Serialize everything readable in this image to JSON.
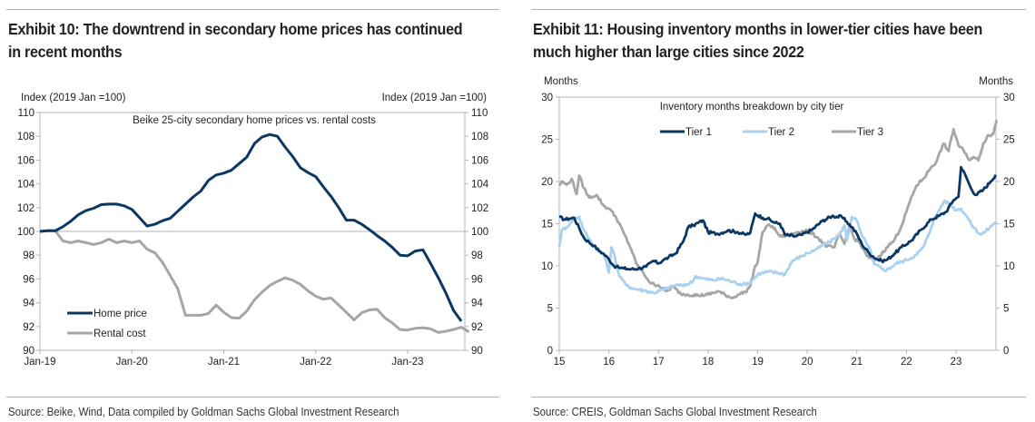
{
  "exhibits": [
    {
      "title_line1": "Exhibit 10: The downtrend in secondary home prices has continued",
      "title_line2": "in recent months",
      "source": "Source: Beike, Wind, Data compiled by Goldman Sachs Global Investment Research"
    },
    {
      "title_line1": "Exhibit 11: Housing inventory months in lower-tier cities have been",
      "title_line2": "much higher than large cities since 2022",
      "source": "Source: CREIS, Goldman Sachs Global Investment Research"
    }
  ],
  "chart_data": [
    {
      "type": "line",
      "title": "Beike 25-city secondary home prices vs. rental costs",
      "ylabel_left": "Index (2019 Jan =100)",
      "ylabel_right": "Index (2019 Jan =100)",
      "ylim": [
        90,
        110
      ],
      "yticks": [
        "110",
        "108",
        "106",
        "104",
        "102",
        "100",
        "98",
        "96",
        "94",
        "92",
        "90"
      ],
      "xticks": [
        "Jan-19",
        "Jan-20",
        "Jan-21",
        "Jan-22",
        "Jan-23"
      ],
      "x_start": "Jan-19",
      "x_frequency": "monthly",
      "legend_position": "bottom-left",
      "reference_line": 100,
      "colors": {
        "home": "#0b3764",
        "rental": "#a6a6a6",
        "axis": "#b5b5b5"
      },
      "series": [
        {
          "name": "Home price",
          "values": [
            100.0,
            100.05,
            100.05,
            100.4,
            100.85,
            101.4,
            101.75,
            101.95,
            102.25,
            102.3,
            102.3,
            102.15,
            101.85,
            101.15,
            100.45,
            100.6,
            100.9,
            101.1,
            101.7,
            102.3,
            102.9,
            103.4,
            104.3,
            104.75,
            104.9,
            105.15,
            105.7,
            106.25,
            107.4,
            107.95,
            108.15,
            108.0,
            107.1,
            106.3,
            105.35,
            104.95,
            104.6,
            103.75,
            102.95,
            102.0,
            100.95,
            100.95,
            100.6,
            100.15,
            99.65,
            99.2,
            98.65,
            98.0,
            97.95,
            98.35,
            98.45,
            97.3,
            96.1,
            94.8,
            93.35,
            92.45
          ]
        },
        {
          "name": "Rental cost",
          "values": [
            100.0,
            100.05,
            100.05,
            99.2,
            99.05,
            99.2,
            99.05,
            98.9,
            99.05,
            99.35,
            99.05,
            99.2,
            99.05,
            99.2,
            98.5,
            98.2,
            97.4,
            96.3,
            95.15,
            92.95,
            92.95,
            92.95,
            93.1,
            93.8,
            93.2,
            92.75,
            92.7,
            93.3,
            94.25,
            94.9,
            95.45,
            95.8,
            96.1,
            95.9,
            95.55,
            95.0,
            94.55,
            94.3,
            94.4,
            93.8,
            93.2,
            92.55,
            93.15,
            93.4,
            93.45,
            92.75,
            92.3,
            91.75,
            91.7,
            91.85,
            91.9,
            91.8,
            91.5,
            91.6,
            91.75,
            91.95,
            91.55
          ]
        }
      ]
    },
    {
      "type": "line",
      "title": "Inventory months breakdown by city tier",
      "ylabel_left": "Months",
      "ylabel_right": "Months",
      "ylim": [
        0,
        30
      ],
      "yticks": [
        "30",
        "25",
        "20",
        "15",
        "10",
        "5",
        "0"
      ],
      "xticks": [
        "15",
        "16",
        "17",
        "18",
        "19",
        "20",
        "21",
        "22",
        "23"
      ],
      "xlim": [
        2015,
        2023.85
      ],
      "legend_position": "top-center",
      "colors": {
        "tier1": "#0b3764",
        "tier2": "#a9d2f0",
        "tier3": "#a6a6a6",
        "axis": "#b5b5b5"
      },
      "series": [
        {
          "name": "Tier 1",
          "x": [
            2015.0,
            2015.1,
            2015.2,
            2015.3,
            2015.4,
            2015.5,
            2015.6,
            2015.7,
            2015.8,
            2015.9,
            2016.0,
            2016.1,
            2016.15,
            2016.2,
            2016.3,
            2016.45,
            2016.6,
            2016.75,
            2016.9,
            2017.0,
            2017.1,
            2017.2,
            2017.35,
            2017.5,
            2017.6,
            2017.7,
            2017.8,
            2017.9,
            2018.0,
            2018.2,
            2018.4,
            2018.6,
            2018.75,
            2018.85,
            2018.95,
            2019.1,
            2019.2,
            2019.35,
            2019.45,
            2019.55,
            2019.75,
            2019.9,
            2020.1,
            2020.3,
            2020.5,
            2020.7,
            2020.8,
            2020.9,
            2021.0,
            2021.1,
            2021.25,
            2021.4,
            2021.5,
            2021.6,
            2021.75,
            2021.9,
            2022.1,
            2022.3,
            2022.5,
            2022.65,
            2022.8,
            2022.95,
            2023.05,
            2023.1,
            2023.2,
            2023.3,
            2023.4,
            2023.55,
            2023.7,
            2023.8
          ],
          "values": [
            15.8,
            15.5,
            15.6,
            15.7,
            14.5,
            13.3,
            12.8,
            12.4,
            11.8,
            11.4,
            10.8,
            10.0,
            9.9,
            9.8,
            9.7,
            9.6,
            9.7,
            9.9,
            10.6,
            10.3,
            10.7,
            11.0,
            11.5,
            12.9,
            14.6,
            14.8,
            15.1,
            15.4,
            14.0,
            13.8,
            14.2,
            14.0,
            13.7,
            13.9,
            16.2,
            15.7,
            15.6,
            15.1,
            15.0,
            13.7,
            13.5,
            13.7,
            14.3,
            15.3,
            15.9,
            15.8,
            15.2,
            14.6,
            13.8,
            12.6,
            11.5,
            10.8,
            10.6,
            10.7,
            11.4,
            12.2,
            13.0,
            14.3,
            15.5,
            15.9,
            16.4,
            17.8,
            18.2,
            21.7,
            20.6,
            19.2,
            18.4,
            19.0,
            20.0,
            20.8
          ]
        },
        {
          "name": "Tier 2",
          "x": [
            2015.0,
            2015.05,
            2015.15,
            2015.3,
            2015.4,
            2015.5,
            2015.6,
            2015.75,
            2015.9,
            2016.0,
            2016.05,
            2016.1,
            2016.2,
            2016.35,
            2016.5,
            2016.7,
            2016.9,
            2017.1,
            2017.3,
            2017.4,
            2017.5,
            2017.7,
            2017.75,
            2017.9,
            2018.1,
            2018.3,
            2018.5,
            2018.7,
            2018.85,
            2019.0,
            2019.2,
            2019.4,
            2019.55,
            2019.7,
            2019.9,
            2020.0,
            2020.2,
            2020.35,
            2020.45,
            2020.55,
            2020.65,
            2020.75,
            2020.8,
            2020.9,
            2021.0,
            2021.1,
            2021.25,
            2021.35,
            2021.5,
            2021.6,
            2021.8,
            2022.0,
            2022.2,
            2022.35,
            2022.5,
            2022.6,
            2022.75,
            2022.85,
            2023.0,
            2023.1,
            2023.2,
            2023.35,
            2023.5,
            2023.6,
            2023.8
          ],
          "values": [
            12.2,
            14.2,
            14.6,
            15.6,
            15.8,
            14.2,
            13.2,
            12.0,
            11.4,
            9.2,
            12.2,
            11.5,
            9.0,
            7.7,
            7.3,
            7.1,
            6.8,
            7.2,
            7.6,
            7.8,
            7.6,
            8.2,
            8.8,
            8.5,
            8.3,
            8.5,
            8.1,
            7.8,
            8.0,
            9.0,
            9.3,
            9.2,
            9.0,
            10.6,
            11.2,
            11.5,
            12.0,
            12.6,
            12.8,
            13.3,
            13.7,
            14.8,
            13.0,
            15.8,
            15.4,
            13.6,
            12.2,
            10.2,
            9.7,
            9.5,
            10.3,
            10.7,
            11.3,
            12.3,
            14.6,
            16.0,
            17.6,
            17.5,
            16.6,
            16.8,
            16.0,
            14.6,
            13.7,
            14.1,
            15.2
          ]
        },
        {
          "name": "Tier 3",
          "x": [
            2015.0,
            2015.05,
            2015.15,
            2015.25,
            2015.35,
            2015.4,
            2015.5,
            2015.6,
            2015.75,
            2015.9,
            2016.0,
            2016.05,
            2016.15,
            2016.3,
            2016.45,
            2016.55,
            2016.7,
            2016.85,
            2017.0,
            2017.15,
            2017.3,
            2017.45,
            2017.6,
            2017.8,
            2018.0,
            2018.2,
            2018.4,
            2018.5,
            2018.6,
            2018.75,
            2018.85,
            2018.95,
            2019.0,
            2019.1,
            2019.2,
            2019.3,
            2019.45,
            2019.6,
            2019.8,
            2020.0,
            2020.2,
            2020.4,
            2020.55,
            2020.65,
            2020.75,
            2020.85,
            2020.95,
            2021.05,
            2021.2,
            2021.35,
            2021.5,
            2021.6,
            2021.75,
            2021.9,
            2022.05,
            2022.2,
            2022.35,
            2022.5,
            2022.6,
            2022.75,
            2022.85,
            2022.95,
            2023.05,
            2023.15,
            2023.25,
            2023.35,
            2023.45,
            2023.55,
            2023.65,
            2023.75,
            2023.82
          ],
          "values": [
            19.5,
            20.0,
            19.6,
            20.3,
            18.5,
            20.7,
            19.2,
            18.1,
            18.4,
            17.1,
            16.8,
            16.5,
            15.7,
            13.9,
            12.0,
            10.3,
            9.1,
            7.9,
            7.7,
            7.0,
            7.5,
            6.7,
            6.6,
            6.5,
            6.6,
            7.0,
            6.4,
            6.2,
            6.6,
            6.9,
            7.6,
            10.0,
            10.4,
            14.0,
            14.8,
            14.7,
            13.5,
            13.6,
            14.0,
            14.2,
            13.4,
            12.3,
            12.2,
            13.8,
            12.6,
            14.8,
            13.2,
            12.8,
            11.2,
            10.6,
            11.4,
            12.2,
            13.0,
            14.7,
            17.3,
            19.5,
            20.4,
            21.7,
            22.3,
            24.5,
            23.6,
            26.2,
            24.3,
            23.7,
            22.6,
            22.9,
            22.5,
            24.5,
            25.5,
            25.6,
            27.3
          ]
        }
      ]
    }
  ]
}
